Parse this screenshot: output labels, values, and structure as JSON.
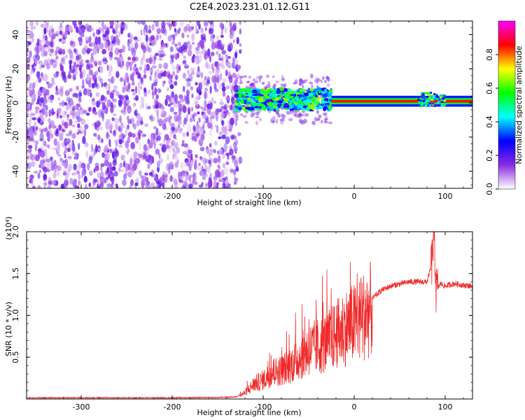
{
  "title": "C2E4.2023.231.01.12.G11",
  "chart_data": [
    {
      "type": "heatmap",
      "panel": "spectrogram",
      "xlabel": "Height of straight line (km)",
      "ylabel": "Frequency (Hz)",
      "xlim": [
        -360,
        130
      ],
      "ylim": [
        -50,
        48
      ],
      "xticks": [
        -300,
        -200,
        -100,
        0,
        100
      ],
      "yticks": [
        -40,
        -20,
        0,
        20,
        40
      ],
      "colorbar": {
        "label": "Normalized spectral amplitude",
        "range": [
          0.0,
          1.0
        ],
        "ticks": [
          0.0,
          0.2,
          0.4,
          0.6,
          0.8
        ],
        "colormap": [
          "#ffffff",
          "#8a2be2",
          "#0000ff",
          "#00ffff",
          "#00ff00",
          "#ffff00",
          "#ff0000",
          "#ff00ff"
        ]
      },
      "regions": [
        {
          "x_range": [
            -360,
            -125
          ],
          "freq_range": [
            -50,
            48
          ],
          "description_amplitude": 0.15
        },
        {
          "x_range": [
            -130,
            -25
          ],
          "freq_center": 2,
          "freq_halfwidth": 6,
          "amplitude": 0.45
        },
        {
          "x_range": [
            -25,
            130
          ],
          "freq_center": 1,
          "freq_halfwidth": 2,
          "amplitude": 0.85
        },
        {
          "x_range": [
            70,
            100
          ],
          "freq_center": 2,
          "freq_halfwidth": 4,
          "amplitude": 0.5
        }
      ]
    },
    {
      "type": "line",
      "panel": "snr",
      "xlabel": "Height of straight line (km)",
      "ylabel": "SNR (10 * v/v)",
      "yscale_label": "(x10⁴)",
      "xlim": [
        -360,
        130
      ],
      "ylim": [
        0,
        20000
      ],
      "xticks": [
        -300,
        -200,
        -100,
        0,
        100
      ],
      "yticks": [
        5000,
        10000,
        15000,
        20000
      ],
      "ytick_labels": [
        "0.5",
        "1.0",
        "1.5",
        "2.0"
      ],
      "color": "#ee2a2a",
      "series": [
        {
          "x": [
            -360,
            -300,
            -250,
            -200,
            -150,
            -130,
            -120,
            -110,
            -100,
            -90,
            -80,
            -70,
            -60,
            -50,
            -40,
            -30,
            -20,
            -10,
            0,
            10,
            20,
            30,
            40,
            60,
            80,
            85,
            88,
            90,
            95,
            100,
            110,
            120,
            130
          ],
          "y": [
            150,
            150,
            150,
            150,
            180,
            250,
            800,
            2000,
            2500,
            3500,
            3800,
            4500,
            5500,
            6500,
            7000,
            7500,
            8500,
            9500,
            10000,
            11000,
            12000,
            13000,
            13500,
            14000,
            14000,
            16000,
            20000,
            13000,
            13800,
            13500,
            13800,
            13600,
            13500
          ]
        }
      ]
    }
  ]
}
